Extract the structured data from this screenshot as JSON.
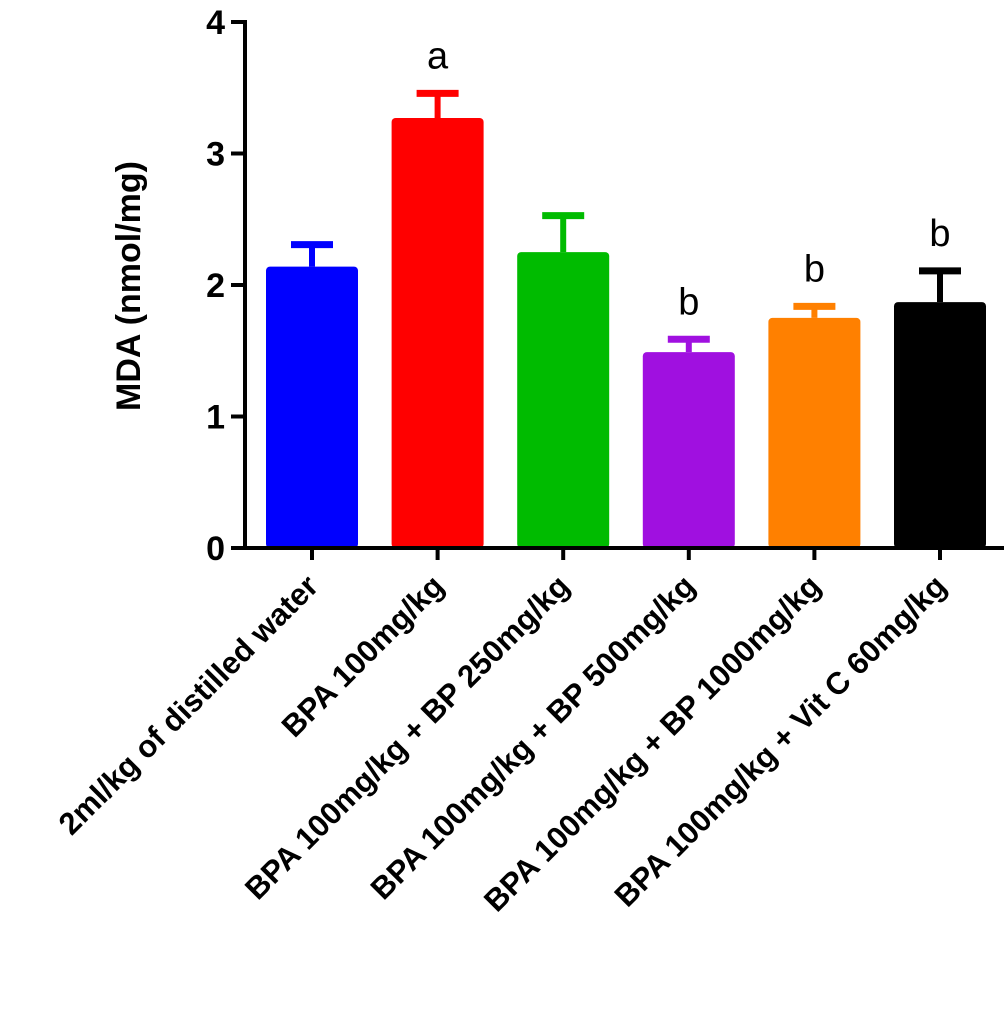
{
  "chart_data": {
    "type": "bar",
    "title": "",
    "xlabel": "",
    "ylabel": "MDA (nmol/mg)",
    "ylim": [
      0,
      4
    ],
    "yticks": [
      "0",
      "1",
      "2",
      "3",
      "4"
    ],
    "grid": false,
    "categories": [
      "2ml/kg of distilled water",
      "BPA 100mg/kg",
      "BPA 100mg/kg + BP 250mg/kg",
      "BPA 100mg/kg + BP 500mg/kg",
      "BPA 100mg/kg + BP 1000mg/kg",
      "BPA 100mg/kg + Vit C 60mg/kg"
    ],
    "values": [
      2.14,
      3.27,
      2.25,
      1.49,
      1.75,
      1.87
    ],
    "errors": [
      0.19,
      0.21,
      0.3,
      0.12,
      0.11,
      0.26
    ],
    "colors": [
      "#0000ff",
      "#ff0000",
      "#00bb00",
      "#a010e0",
      "#ff8000",
      "#000000"
    ],
    "annotations": [
      "",
      "a",
      "",
      "b",
      "b",
      "b"
    ]
  }
}
